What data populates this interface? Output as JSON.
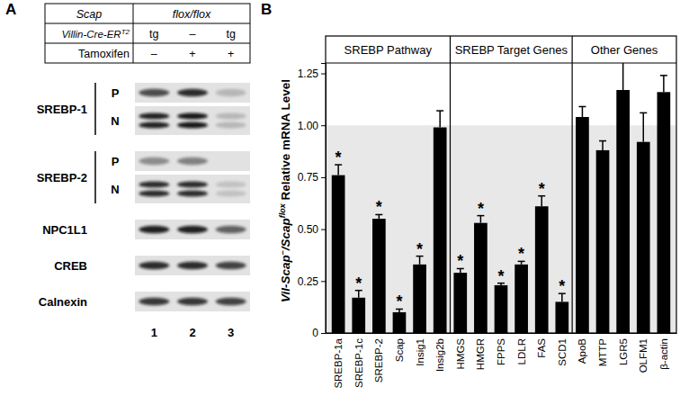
{
  "panel_a": {
    "panel_label": "A",
    "header": [
      {
        "label": "Scap",
        "values": [
          "flox/flox"
        ]
      },
      {
        "label": [
          "Villin-Cre-ER",
          "T2"
        ],
        "values": [
          "tg",
          "–",
          "tg"
        ]
      },
      {
        "label": "Tamoxifen",
        "values": [
          "–",
          "+",
          "+"
        ]
      }
    ],
    "blots": [
      {
        "label": "SREBP-1",
        "rows": [
          {
            "fraction": "P",
            "intensity": [
              0.7,
              0.85,
              0.2
            ]
          },
          {
            "fraction": "N",
            "intensity": [
              0.9,
              0.95,
              0.2
            ]
          }
        ]
      },
      {
        "label": "SREBP-2",
        "rows": [
          {
            "fraction": "P",
            "intensity": [
              0.4,
              0.45,
              0
            ]
          },
          {
            "fraction": "N",
            "intensity": [
              0.85,
              0.85,
              0.15
            ]
          }
        ]
      },
      {
        "label": "NPC1L1",
        "rows": [
          {
            "intensity": [
              0.9,
              0.9,
              0.6
            ]
          }
        ]
      },
      {
        "label": "CREB",
        "rows": [
          {
            "intensity": [
              0.85,
              0.85,
              0.75
            ]
          }
        ]
      },
      {
        "label": "Calnexin",
        "rows": [
          {
            "intensity": [
              0.8,
              0.8,
              0.75
            ]
          }
        ]
      }
    ],
    "lanes": [
      1,
      2,
      3
    ]
  },
  "chart_data": {
    "type": "bar",
    "panel_label": "B",
    "groups": [
      {
        "label": "SREBP Pathway",
        "size": 6
      },
      {
        "label": "SREBP Target Genes",
        "size": 6
      },
      {
        "label": "Other Genes",
        "size": 5
      }
    ],
    "categories": [
      "SREBP-1a",
      "SREBP-1c",
      "SREBP-2",
      "Scap",
      "Insig1",
      "Insig2b",
      "HMGS",
      "HMGR",
      "FPPS",
      "LDLR",
      "FAS",
      "SCD1",
      "ApoB",
      "MTTP",
      "LGR5",
      "OLFM1",
      "β-actin"
    ],
    "values": [
      0.76,
      0.17,
      0.55,
      0.1,
      0.33,
      0.99,
      0.29,
      0.53,
      0.23,
      0.33,
      0.61,
      0.15,
      1.04,
      0.88,
      1.17,
      0.92,
      1.16
    ],
    "errors": [
      0.05,
      0.035,
      0.02,
      0.015,
      0.04,
      0.08,
      0.02,
      0.035,
      0.01,
      0.015,
      0.05,
      0.04,
      0.05,
      0.045,
      0.18,
      0.14,
      0.08
    ],
    "significance": [
      "*",
      "*",
      "*",
      "*",
      "*",
      null,
      "*",
      "*",
      "*",
      "*",
      "*",
      "*",
      null,
      null,
      null,
      null,
      null
    ],
    "color": "#000000",
    "ylim": [
      0,
      1.3
    ],
    "yticks": [
      0,
      0.25,
      {
        "value": 0.5,
        "label": "0.50"
      },
      0.75,
      {
        "value": 1,
        "label": "1.00"
      },
      1.25
    ],
    "ylabel": [
      "Vil-Scap",
      "–",
      "/Scap",
      "flox",
      " Relative mRNA Level"
    ],
    "reference_band": [
      0,
      1
    ]
  }
}
